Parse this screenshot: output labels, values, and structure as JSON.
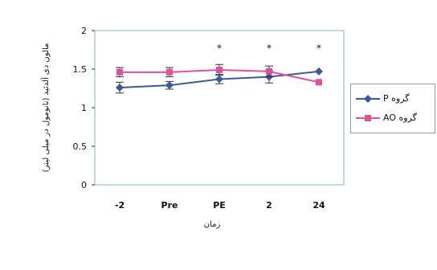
{
  "chart_data": {
    "type": "line",
    "categories": [
      "-2",
      "Pre",
      "PE",
      "2",
      "24"
    ],
    "xlabel": "زمان",
    "ylabel": "مالون دی آلدئید (نانومول در میلی لیتر)",
    "ylim": [
      0,
      2
    ],
    "yticks": [
      "0",
      "0.5",
      "1",
      "1.5",
      "2"
    ],
    "grid": false,
    "legend_position": "right",
    "series": [
      {
        "name": "گروه P",
        "color": "#3a5a9a",
        "marker": "diamond",
        "values": [
          1.26,
          1.29,
          1.37,
          1.4,
          1.47
        ],
        "errors": [
          0.07,
          0.05,
          0.06,
          0.08,
          0.0
        ]
      },
      {
        "name": "گروه AO",
        "color": "#e0509c",
        "marker": "square",
        "values": [
          1.46,
          1.46,
          1.49,
          1.47,
          1.33
        ],
        "errors": [
          0.06,
          0.06,
          0.07,
          0.07,
          0.0
        ]
      }
    ],
    "annotations": [
      {
        "category": "PE",
        "text": "*"
      },
      {
        "category": "2",
        "text": "*"
      },
      {
        "category": "24",
        "text": "*"
      }
    ]
  }
}
